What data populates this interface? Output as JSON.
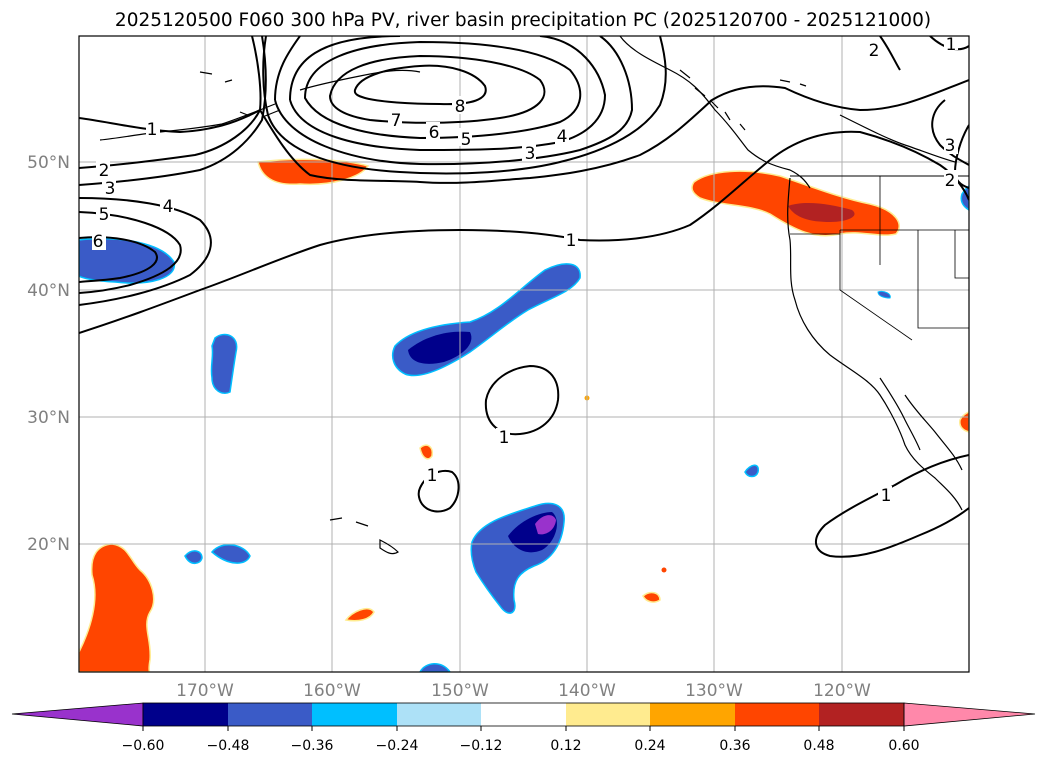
{
  "title": "2025120500 F060 300 hPa PV, river basin precipitation PC (2025120700 - 2025121000)",
  "axes": {
    "lat_labels": [
      "50°N",
      "40°N",
      "30°N",
      "20°N"
    ],
    "lon_labels": [
      "170°W",
      "160°W",
      "150°W",
      "140°W",
      "130°W",
      "120°W"
    ]
  },
  "contour_labels": [
    "1",
    "2",
    "3",
    "4",
    "5",
    "6",
    "7",
    "8",
    "6",
    "5",
    "4",
    "3",
    "2",
    "1",
    "2",
    "3",
    "1",
    "1",
    "1",
    "1"
  ],
  "colorbar": {
    "ticks": [
      "−0.60",
      "−0.48",
      "−0.36",
      "−0.24",
      "−0.12",
      "0.12",
      "0.24",
      "0.36",
      "0.48",
      "0.60"
    ],
    "colors": [
      "#9932CC",
      "#00008B",
      "#3A5BC7",
      "#00BFFF",
      "#ADE1F7",
      "#FFFFFF",
      "#FFEB8F",
      "#FFA500",
      "#FF4500",
      "#B22222",
      "#FF88AA"
    ]
  }
}
